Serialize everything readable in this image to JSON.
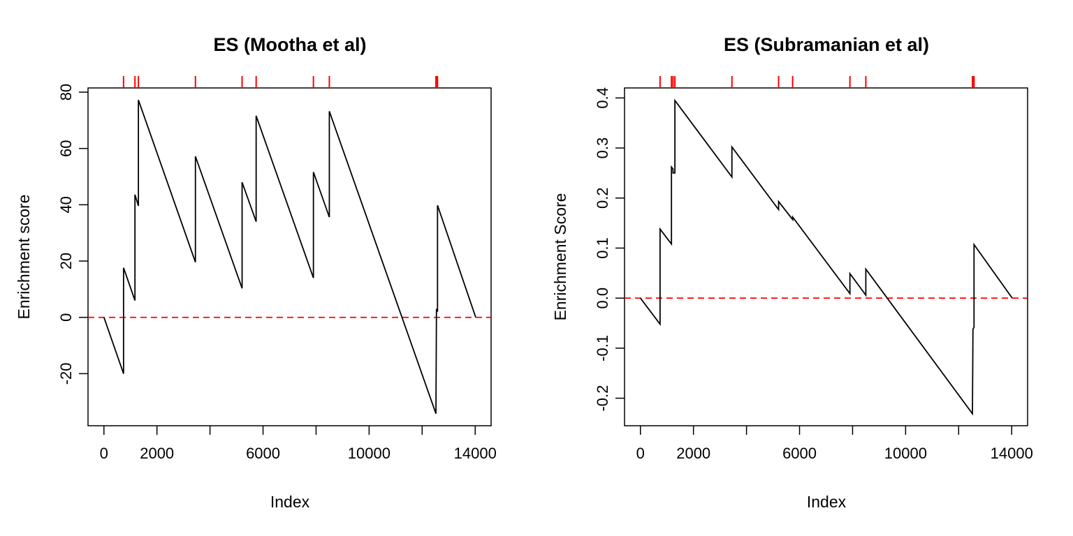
{
  "chart_data": [
    {
      "type": "line",
      "title": "ES (Mootha et al)",
      "xlabel": "Index",
      "ylabel": "Enrichment score",
      "xlim": [
        -600,
        14600
      ],
      "ylim": [
        -38.5,
        81.5
      ],
      "x_ticks": [
        0,
        2000,
        4000,
        6000,
        8000,
        10000,
        12000,
        14000
      ],
      "x_tick_labels": [
        "0",
        "2000",
        "",
        "6000",
        "",
        "10000",
        "",
        "14000"
      ],
      "y_ticks": [
        -20,
        0,
        20,
        40,
        60,
        80
      ],
      "y_tick_labels": [
        "-20",
        "0",
        "20",
        "40",
        "60",
        "80"
      ],
      "baseline": {
        "y": 0,
        "color": "#ff0000",
        "style": "dashed"
      },
      "series": [
        {
          "color": "#000000",
          "x": [
            0,
            740,
            740,
            1170,
            1170,
            1300,
            1300,
            3450,
            3450,
            5210,
            5210,
            5740,
            5740,
            7900,
            7900,
            8500,
            8500,
            12520,
            12520,
            12540,
            12540,
            12580,
            12580,
            14020
          ],
          "y": [
            0,
            -20,
            17.6,
            6,
            43.6,
            39.6,
            77.2,
            19.6,
            57.2,
            10.3,
            48,
            34,
            71.6,
            14,
            51.6,
            35.6,
            73.2,
            -34.2,
            -34.2,
            3,
            3,
            2,
            39.8,
            0
          ]
        }
      ],
      "rug": {
        "color": "#ff0000",
        "positions": [
          740,
          1170,
          1300,
          3450,
          5210,
          5740,
          7900,
          8500,
          12520,
          12540,
          12580
        ]
      }
    },
    {
      "type": "line",
      "title": "ES (Subramanian et al)",
      "xlabel": "Index",
      "ylabel": "Enrichment Score",
      "xlim": [
        -600,
        14600
      ],
      "ylim": [
        -0.255,
        0.42
      ],
      "x_ticks": [
        0,
        2000,
        4000,
        6000,
        8000,
        10000,
        12000,
        14000
      ],
      "x_tick_labels": [
        "0",
        "2000",
        "",
        "6000",
        "",
        "10000",
        "",
        "14000"
      ],
      "y_ticks": [
        -0.2,
        -0.1,
        0.0,
        0.1,
        0.2,
        0.3,
        0.4
      ],
      "y_tick_labels": [
        "-0.2",
        "-0.1",
        "0.0",
        "0.1",
        "0.2",
        "0.3",
        "0.4"
      ],
      "baseline": {
        "y": 0,
        "color": "#ff0000",
        "style": "dashed"
      },
      "series": [
        {
          "color": "#000000",
          "x": [
            0,
            740,
            740,
            1170,
            1170,
            1230,
            1230,
            1300,
            1300,
            3450,
            3450,
            5210,
            5210,
            5740,
            5740,
            7900,
            7900,
            8500,
            8500,
            12520,
            12520,
            12540,
            12540,
            12580,
            12580,
            14020
          ],
          "y": [
            0,
            -0.052,
            0.138,
            0.108,
            0.262,
            0.258,
            0.25,
            0.25,
            0.395,
            0.242,
            0.302,
            0.177,
            0.193,
            0.157,
            0.162,
            0.009,
            0.049,
            0.006,
            0.058,
            -0.231,
            -0.231,
            -0.062,
            -0.062,
            -0.058,
            0.107,
            0
          ]
        }
      ],
      "rug": {
        "color": "#ff0000",
        "positions": [
          740,
          1170,
          1230,
          1300,
          3450,
          5210,
          5740,
          7900,
          8500,
          12520,
          12540,
          12580
        ]
      }
    }
  ]
}
